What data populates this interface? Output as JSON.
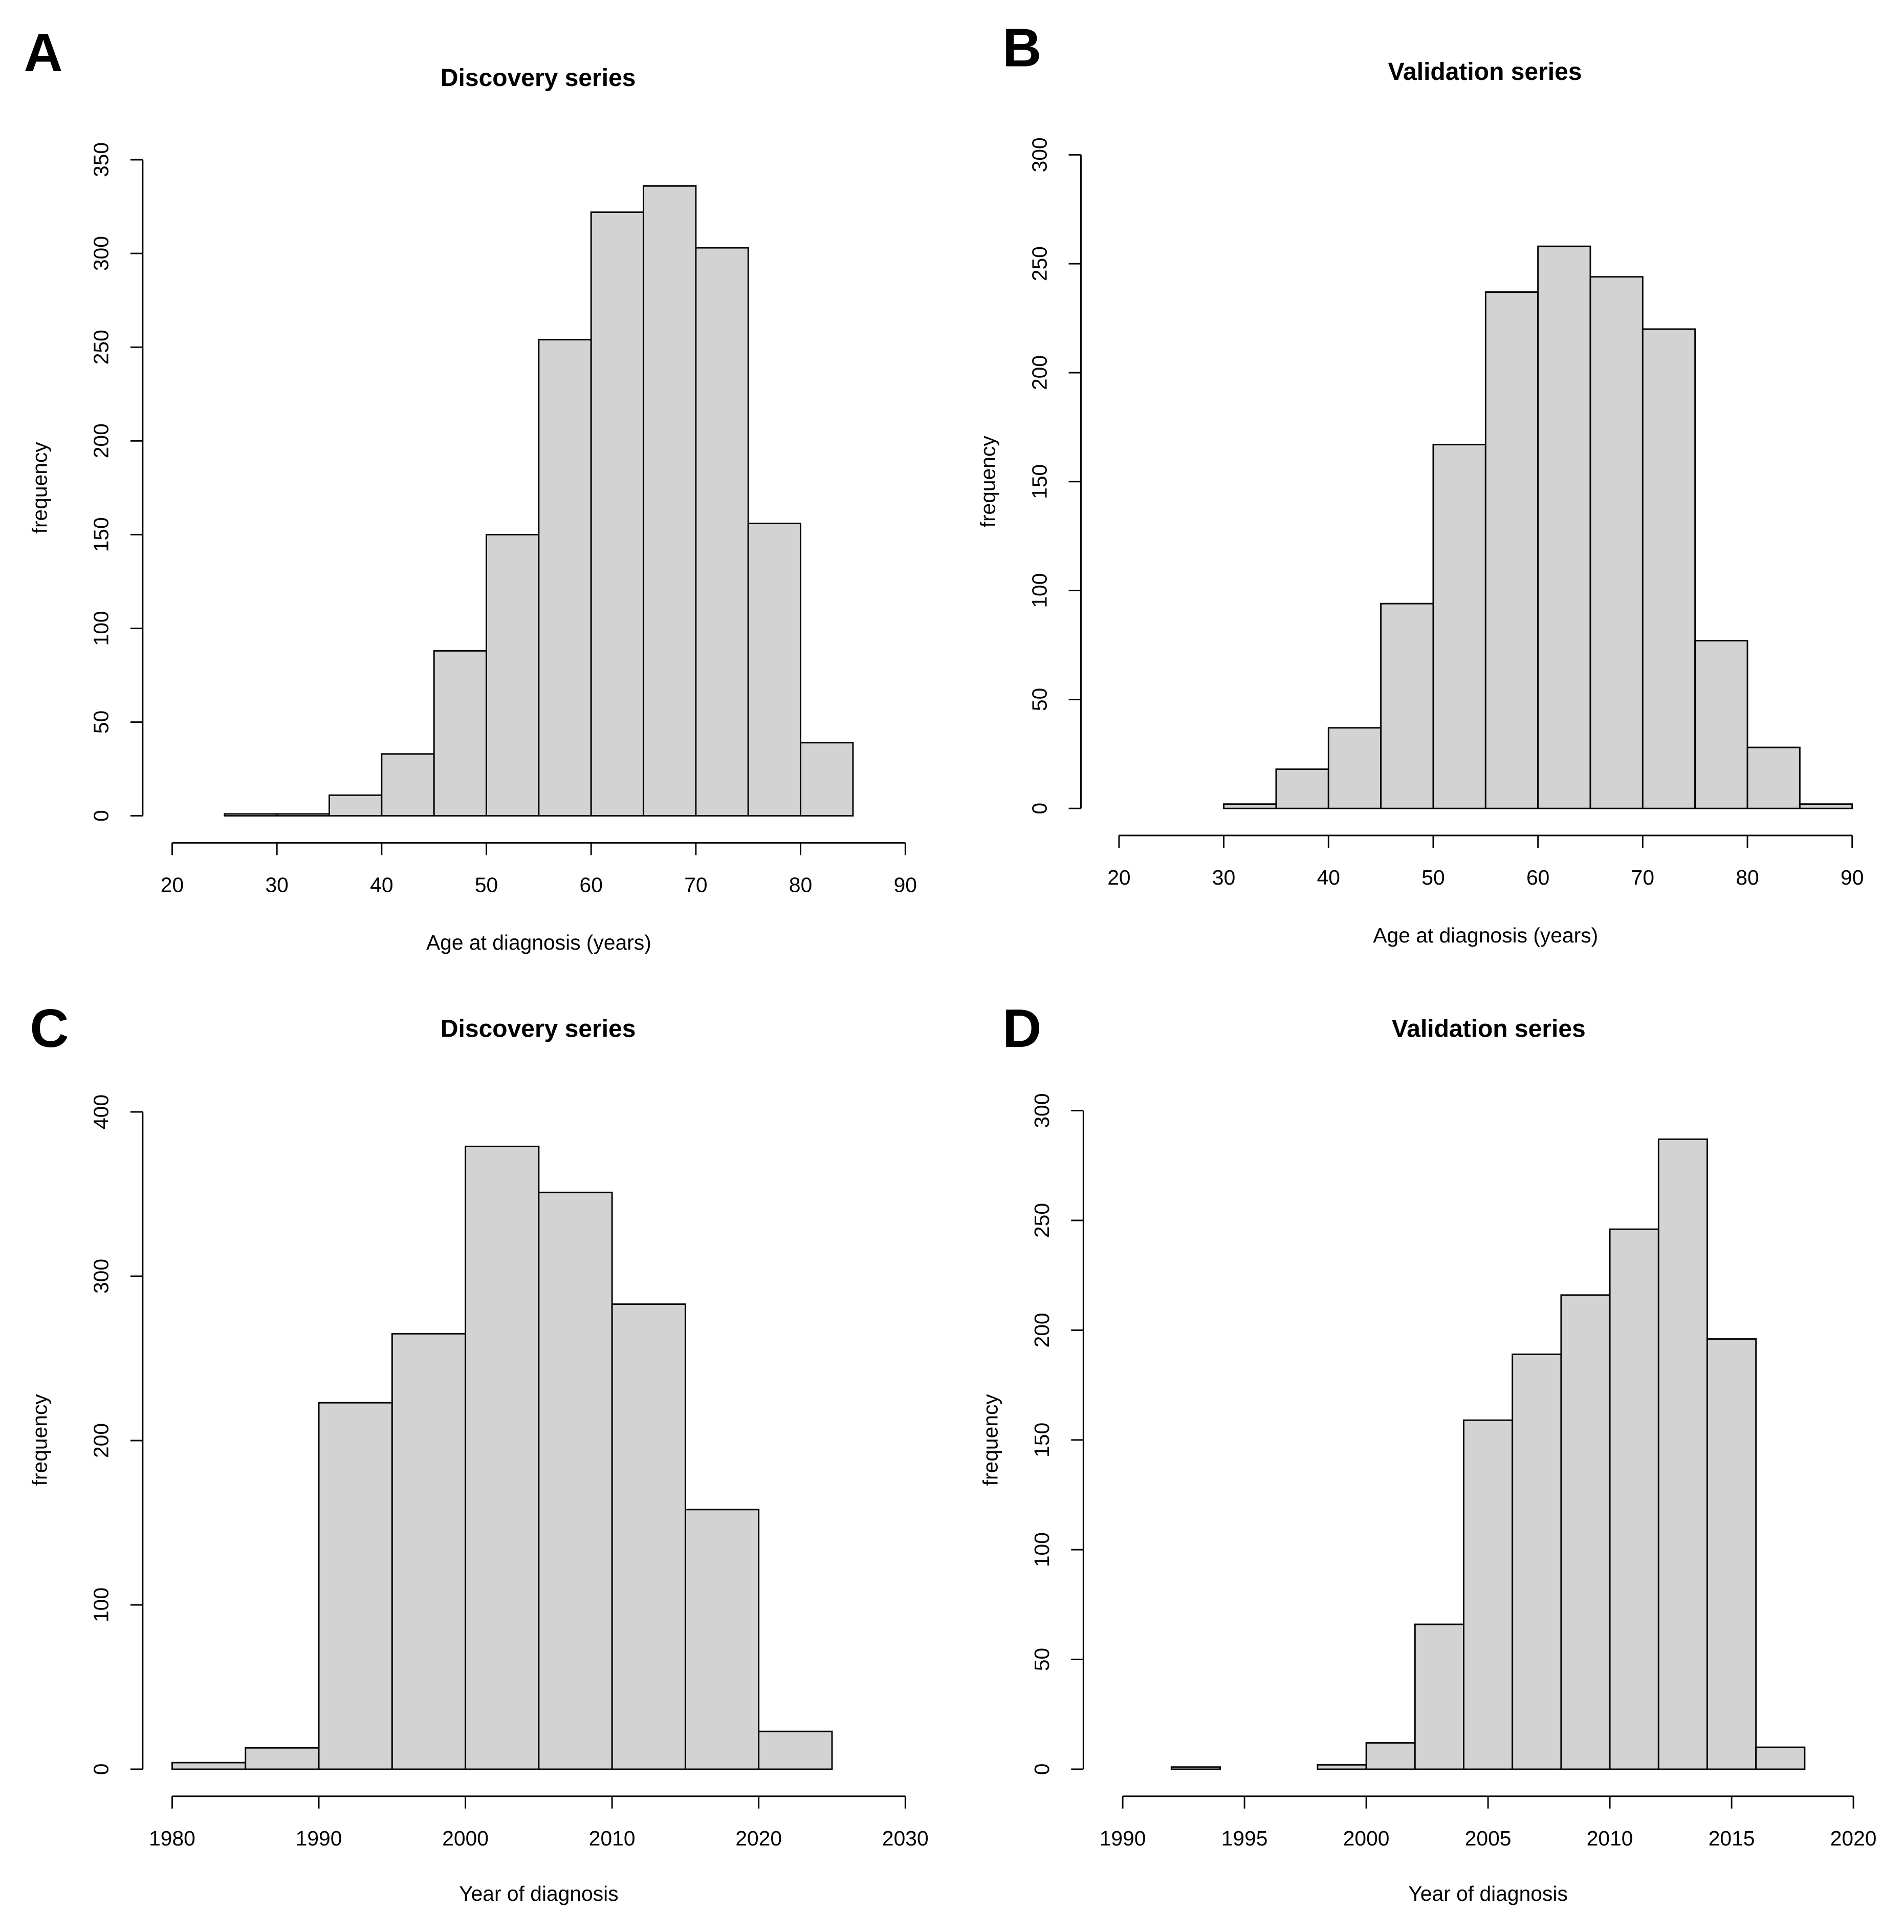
{
  "chart_data": [
    {
      "type": "histogram",
      "panel": "A",
      "title": "Discovery series",
      "xlabel": "Age at diagnosis (years)",
      "ylabel": "frequency",
      "bins": [
        25,
        30,
        35,
        40,
        45,
        50,
        55,
        60,
        65,
        70,
        75,
        80,
        85
      ],
      "values": [
        1,
        1,
        11,
        33,
        88,
        150,
        254,
        322,
        336,
        303,
        156,
        39
      ],
      "color": "#d3d3d3",
      "xlim": [
        20,
        90
      ],
      "xticks": [
        20,
        30,
        40,
        50,
        60,
        70,
        80,
        90
      ],
      "ylim": [
        0,
        350
      ],
      "yticks": [
        0,
        50,
        100,
        150,
        200,
        250,
        300,
        350
      ]
    },
    {
      "type": "histogram",
      "panel": "B",
      "title": "Validation series",
      "xlabel": "Age at diagnosis (years)",
      "ylabel": "frequency",
      "bins": [
        30,
        35,
        40,
        45,
        50,
        55,
        60,
        65,
        70,
        75,
        80,
        85,
        90
      ],
      "values": [
        2,
        18,
        37,
        94,
        167,
        237,
        258,
        244,
        220,
        77,
        28,
        2
      ],
      "color": "#d3d3d3",
      "xlim": [
        20,
        90
      ],
      "xticks": [
        20,
        30,
        40,
        50,
        60,
        70,
        80,
        90
      ],
      "ylim": [
        0,
        300
      ],
      "yticks": [
        0,
        50,
        100,
        150,
        200,
        250,
        300
      ]
    },
    {
      "type": "histogram",
      "panel": "C",
      "title": "Discovery series",
      "xlabel": "Year of diagnosis",
      "ylabel": "frequency",
      "bins": [
        1980,
        1985,
        1990,
        1995,
        2000,
        2005,
        2010,
        2015,
        2020,
        2025
      ],
      "values": [
        4,
        13,
        223,
        265,
        379,
        351,
        283,
        158,
        23
      ],
      "color": "#d3d3d3",
      "xlim": [
        1980,
        2030
      ],
      "xticks": [
        1980,
        1990,
        2000,
        2010,
        2020,
        2030
      ],
      "ylim": [
        0,
        400
      ],
      "yticks": [
        0,
        100,
        200,
        300,
        400
      ]
    },
    {
      "type": "histogram",
      "panel": "D",
      "title": "Validation series",
      "xlabel": "Year of diagnosis",
      "ylabel": "frequency",
      "bins": [
        1992,
        1994,
        1996,
        1998,
        2000,
        2002,
        2004,
        2006,
        2008,
        2010,
        2012,
        2014,
        2016,
        2018
      ],
      "values": [
        1,
        0,
        0,
        2,
        12,
        66,
        159,
        189,
        216,
        246,
        287,
        196,
        10
      ],
      "color": "#d3d3d3",
      "xlim": [
        1990,
        2020
      ],
      "xticks": [
        1990,
        1995,
        2000,
        2005,
        2010,
        2015,
        2020
      ],
      "ylim": [
        0,
        300
      ],
      "yticks": [
        0,
        50,
        100,
        150,
        200,
        250,
        300
      ]
    }
  ]
}
